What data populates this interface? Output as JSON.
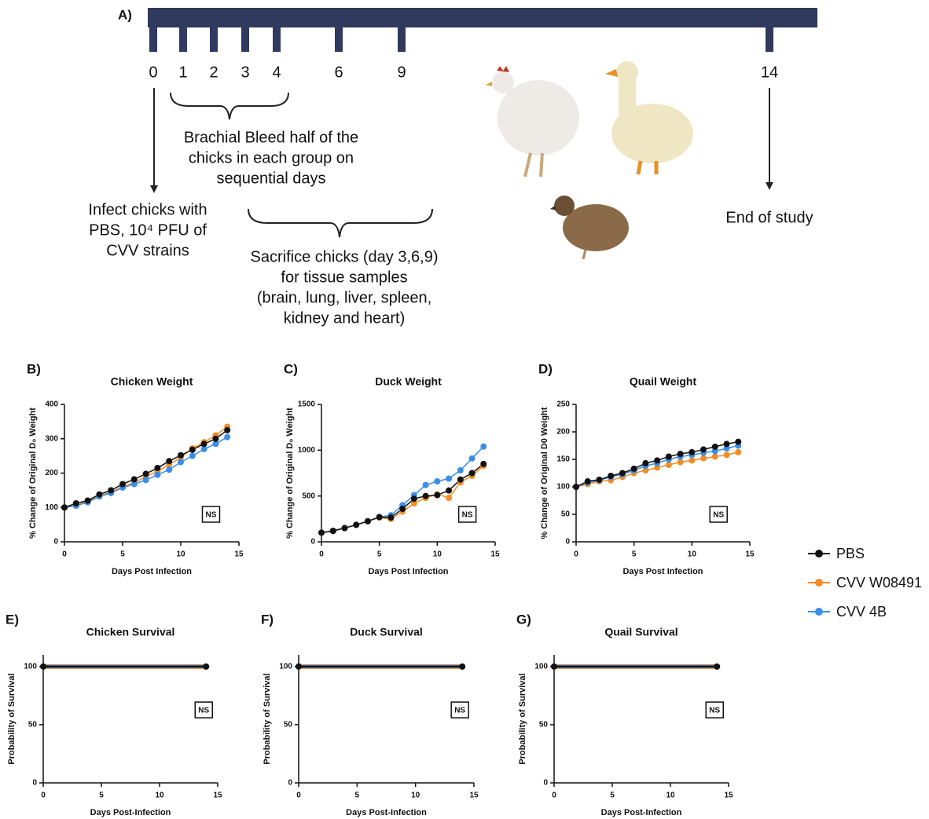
{
  "timeline": {
    "label": "A)",
    "days": [
      0,
      1,
      2,
      3,
      4,
      6,
      9,
      14
    ],
    "bleed_note": [
      "Brachial Bleed half of the",
      "chicks in each group on",
      "sequential days"
    ],
    "infect_note": [
      "Infect chicks with",
      "PBS, 10⁴ PFU of",
      "CVV strains"
    ],
    "sacrifice_note": [
      "Sacrifice chicks (day 3,6,9)",
      "for tissue samples",
      "(brain, lung, liver, spleen,",
      "kidney and heart)"
    ],
    "end_note": "End of study"
  },
  "chart_data": [
    {
      "type": "line",
      "panel": "B)",
      "title": "Chicken Weight",
      "x_label": "Days Post Infection",
      "y_label": "% Change of Original D₀ Weight",
      "annotation": "NS",
      "xlim": [
        0,
        15
      ],
      "xticks": [
        0,
        5,
        10,
        15
      ],
      "ylim": [
        0,
        400
      ],
      "yticks": [
        0,
        100,
        200,
        300,
        400
      ],
      "x": [
        0,
        1,
        2,
        3,
        4,
        5,
        6,
        7,
        8,
        9,
        10,
        11,
        12,
        13,
        14
      ],
      "series": [
        {
          "name": "PBS",
          "color": "#111111",
          "values": [
            100,
            112,
            120,
            138,
            150,
            168,
            182,
            198,
            215,
            235,
            252,
            268,
            285,
            300,
            325
          ]
        },
        {
          "name": "CVV W08491",
          "color": "#f28c28",
          "values": [
            100,
            105,
            118,
            133,
            145,
            160,
            172,
            190,
            205,
            225,
            245,
            272,
            290,
            310,
            335
          ]
        },
        {
          "name": "CVV 4B",
          "color": "#3a8ee6",
          "values": [
            100,
            105,
            115,
            132,
            142,
            158,
            168,
            180,
            195,
            210,
            232,
            250,
            270,
            285,
            305
          ]
        }
      ]
    },
    {
      "type": "line",
      "panel": "C)",
      "title": "Duck Weight",
      "x_label": "Days Post Infection",
      "y_label": "% Change of Original D₀ Weight",
      "annotation": "NS",
      "xlim": [
        0,
        15
      ],
      "xticks": [
        0,
        5,
        10,
        15
      ],
      "ylim": [
        0,
        1500
      ],
      "yticks": [
        0,
        500,
        1000,
        1500
      ],
      "x": [
        0,
        1,
        2,
        3,
        4,
        5,
        6,
        7,
        8,
        9,
        10,
        11,
        12,
        13,
        14
      ],
      "series": [
        {
          "name": "PBS",
          "color": "#111111",
          "values": [
            100,
            120,
            150,
            185,
            225,
            270,
            265,
            360,
            470,
            500,
            510,
            560,
            680,
            750,
            850
          ]
        },
        {
          "name": "CVV W08491",
          "color": "#f28c28",
          "values": [
            100,
            115,
            150,
            185,
            225,
            265,
            250,
            330,
            420,
            480,
            520,
            480,
            650,
            720,
            830
          ]
        },
        {
          "name": "CVV 4B",
          "color": "#3a8ee6",
          "values": [
            100,
            120,
            150,
            185,
            225,
            270,
            290,
            400,
            510,
            620,
            660,
            690,
            780,
            910,
            1040
          ]
        }
      ]
    },
    {
      "type": "line",
      "panel": "D)",
      "title": "Quail Weight",
      "x_label": "Days Post Infection",
      "y_label": "% Change of Original D0 Weight",
      "annotation": "NS",
      "xlim": [
        0,
        15
      ],
      "xticks": [
        0,
        5,
        10,
        15
      ],
      "ylim": [
        0,
        250
      ],
      "yticks": [
        0,
        50,
        100,
        150,
        200,
        250
      ],
      "x": [
        0,
        1,
        2,
        3,
        4,
        5,
        6,
        7,
        8,
        9,
        10,
        11,
        12,
        13,
        14
      ],
      "series": [
        {
          "name": "PBS",
          "color": "#111111",
          "values": [
            100,
            110,
            113,
            120,
            125,
            133,
            143,
            148,
            155,
            160,
            163,
            168,
            173,
            178,
            182
          ]
        },
        {
          "name": "CVV W08491",
          "color": "#f28c28",
          "values": [
            100,
            105,
            110,
            112,
            118,
            125,
            130,
            135,
            140,
            145,
            148,
            152,
            155,
            158,
            163
          ]
        },
        {
          "name": "CVV 4B",
          "color": "#3a8ee6",
          "values": [
            100,
            108,
            112,
            118,
            123,
            130,
            138,
            143,
            150,
            155,
            158,
            162,
            165,
            170,
            175
          ]
        }
      ]
    },
    {
      "type": "line",
      "panel": "E)",
      "title": "Chicken Survival",
      "x_label": "Days Post-Infection",
      "y_label": "Probability of Survival",
      "annotation": "NS",
      "xlim": [
        0,
        15
      ],
      "xticks": [
        0,
        5,
        10,
        15
      ],
      "ylim": [
        0,
        110
      ],
      "yticks": [
        0,
        50,
        100
      ],
      "x": [
        0,
        14
      ],
      "series": [
        {
          "name": "PBS",
          "color": "#111111",
          "values": [
            100,
            100
          ]
        },
        {
          "name": "CVV W08491",
          "color": "#f28c28",
          "values": [
            100,
            100
          ]
        },
        {
          "name": "CVV 4B",
          "color": "#3a8ee6",
          "values": [
            100,
            100
          ]
        }
      ]
    },
    {
      "type": "line",
      "panel": "F)",
      "title": "Duck Survival",
      "x_label": "Days Post-Infection",
      "y_label": "Probability of Survival",
      "annotation": "NS",
      "xlim": [
        0,
        15
      ],
      "xticks": [
        0,
        5,
        10,
        15
      ],
      "ylim": [
        0,
        110
      ],
      "yticks": [
        0,
        50,
        100
      ],
      "x": [
        0,
        14
      ],
      "series": [
        {
          "name": "PBS",
          "color": "#111111",
          "values": [
            100,
            100
          ]
        },
        {
          "name": "CVV W08491",
          "color": "#f28c28",
          "values": [
            100,
            100
          ]
        },
        {
          "name": "CVV 4B",
          "color": "#3a8ee6",
          "values": [
            100,
            100
          ]
        }
      ]
    },
    {
      "type": "line",
      "panel": "G)",
      "title": "Quail Survival",
      "x_label": "Days Post-Infection",
      "y_label": "Probability of Survival",
      "annotation": "NS",
      "xlim": [
        0,
        15
      ],
      "xticks": [
        0,
        5,
        10,
        15
      ],
      "ylim": [
        0,
        110
      ],
      "yticks": [
        0,
        50,
        100
      ],
      "x": [
        0,
        14
      ],
      "series": [
        {
          "name": "PBS",
          "color": "#111111",
          "values": [
            100,
            100
          ]
        },
        {
          "name": "CVV W08491",
          "color": "#f28c28",
          "values": [
            100,
            100
          ]
        },
        {
          "name": "CVV 4B",
          "color": "#3a8ee6",
          "values": [
            100,
            100
          ]
        }
      ]
    }
  ]
}
